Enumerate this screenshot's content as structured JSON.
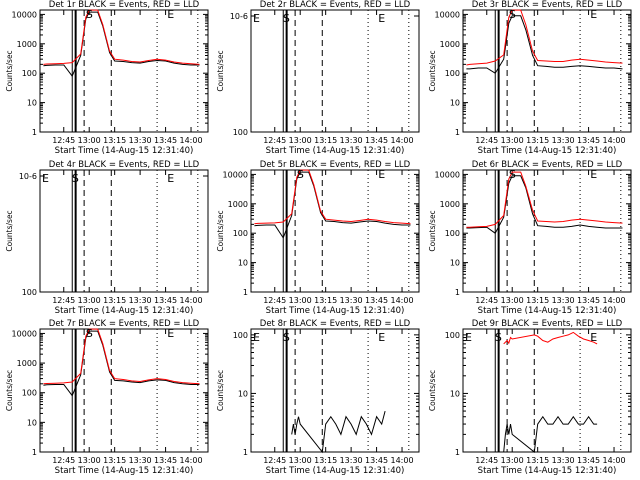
{
  "colors": {
    "events": "#000000",
    "lld": "#ff0000",
    "axis": "#000000",
    "background": "#ffffff"
  },
  "chart_data": [
    {
      "type": "line",
      "scale": "log",
      "title": "Det 1r BLACK = Events, RED = LLD",
      "ylabel": "Counts/sec",
      "xlabel": "Start Time (14-Aug-15 12:31:40)",
      "xticks": [
        "12:45",
        "13:00",
        "13:15",
        "13:30",
        "13:45",
        "14:00"
      ],
      "yticks": [
        "1",
        "10",
        "100",
        "1000",
        "10000"
      ],
      "ylim_log": [
        0,
        4.15
      ],
      "x": [
        "12:33",
        "12:35",
        "12:40",
        "12:45",
        "12:50",
        "12:55",
        "12:58",
        "13:00",
        "13:03",
        "13:05",
        "13:08",
        "13:12",
        "13:15",
        "13:20",
        "13:25",
        "13:30",
        "13:35",
        "13:40",
        "13:45",
        "13:50",
        "13:55",
        "14:00",
        "14:05"
      ],
      "series": [
        {
          "name": "Events",
          "color": "#000000",
          "values": [
            180,
            185,
            190,
            190,
            80,
            400,
            7000,
            12000,
            12000,
            12000,
            4000,
            500,
            260,
            250,
            230,
            220,
            250,
            270,
            260,
            220,
            200,
            190,
            190
          ]
        },
        {
          "name": "LLD",
          "color": "#ff0000",
          "values": [
            200,
            205,
            210,
            215,
            230,
            450,
            8000,
            14000,
            14000,
            14000,
            4500,
            560,
            300,
            280,
            250,
            240,
            270,
            300,
            280,
            240,
            220,
            210,
            200
          ]
        }
      ],
      "markers": [
        "S",
        "E"
      ]
    },
    {
      "type": "line",
      "scale": "log",
      "title": "Det 2r BLACK = Events, RED = LLD",
      "ylabel": "Counts/sec",
      "xlabel": "Start Time (14-Aug-15 12:31:40)",
      "xticks": [
        "12:45",
        "13:00",
        "13:15",
        "13:30",
        "13:45",
        "14:00"
      ],
      "yticks": [
        "10^0",
        "10^-6"
      ],
      "ylim_log": [
        0,
        1
      ],
      "x": [],
      "series": [],
      "markers": [
        "E",
        "S",
        "E"
      ]
    },
    {
      "type": "line",
      "scale": "log",
      "title": "Det 3r BLACK = Events, RED = LLD",
      "ylabel": "Counts/sec",
      "xlabel": "Start Time (14-Aug-15 12:31:40)",
      "xticks": [
        "12:45",
        "13:00",
        "13:15",
        "13:30",
        "13:45",
        "14:00"
      ],
      "yticks": [
        "1",
        "10",
        "100",
        "1000",
        "10000"
      ],
      "ylim_log": [
        0,
        4.15
      ],
      "x": [
        "12:33",
        "12:35",
        "12:40",
        "12:45",
        "12:50",
        "12:55",
        "12:58",
        "13:00",
        "13:03",
        "13:05",
        "13:08",
        "13:12",
        "13:15",
        "13:20",
        "13:25",
        "13:30",
        "13:35",
        "13:40",
        "13:45",
        "13:50",
        "13:55",
        "14:00",
        "14:05"
      ],
      "series": [
        {
          "name": "Events",
          "color": "#000000",
          "values": [
            140,
            140,
            150,
            150,
            100,
            300,
            5000,
            9000,
            9000,
            9000,
            3000,
            400,
            180,
            170,
            160,
            160,
            170,
            180,
            170,
            160,
            150,
            150,
            140
          ]
        },
        {
          "name": "LLD",
          "color": "#ff0000",
          "values": [
            190,
            200,
            210,
            220,
            260,
            420,
            8000,
            14000,
            14000,
            14000,
            4500,
            560,
            270,
            260,
            250,
            250,
            280,
            300,
            280,
            260,
            240,
            230,
            220
          ]
        }
      ],
      "markers": [
        "S",
        "E"
      ]
    },
    {
      "type": "line",
      "scale": "log",
      "title": "Det 4r BLACK = Events, RED = LLD",
      "ylabel": "Counts/sec",
      "xlabel": "Start Time (14-Aug-15 12:31:40)",
      "xticks": [
        "12:45",
        "13:00",
        "13:15",
        "13:30",
        "13:45",
        "14:00"
      ],
      "yticks": [
        "10^0",
        "10^-6"
      ],
      "ylim_log": [
        0,
        1
      ],
      "x": [],
      "series": [],
      "markers": [
        "E",
        "S",
        "E"
      ]
    },
    {
      "type": "line",
      "scale": "log",
      "title": "Det 5r BLACK = Events, RED = LLD",
      "ylabel": "Counts/sec",
      "xlabel": "Start Time (14-Aug-15 12:31:40)",
      "xticks": [
        "12:45",
        "13:00",
        "13:15",
        "13:30",
        "13:45",
        "14:00"
      ],
      "yticks": [
        "1",
        "10",
        "100",
        "1000",
        "10000"
      ],
      "ylim_log": [
        0,
        4.15
      ],
      "x": [
        "12:33",
        "12:35",
        "12:40",
        "12:45",
        "12:50",
        "12:55",
        "12:58",
        "13:00",
        "13:03",
        "13:05",
        "13:08",
        "13:12",
        "13:15",
        "13:20",
        "13:25",
        "13:30",
        "13:35",
        "13:40",
        "13:45",
        "13:50",
        "13:55",
        "14:00",
        "14:05"
      ],
      "series": [
        {
          "name": "Events",
          "color": "#000000",
          "values": [
            180,
            185,
            190,
            190,
            70,
            400,
            7000,
            12000,
            12000,
            12000,
            4000,
            500,
            260,
            250,
            230,
            220,
            240,
            260,
            250,
            220,
            200,
            190,
            190
          ]
        },
        {
          "name": "LLD",
          "color": "#ff0000",
          "values": [
            210,
            215,
            220,
            225,
            240,
            460,
            8000,
            14000,
            14000,
            14000,
            4500,
            560,
            300,
            280,
            260,
            250,
            270,
            300,
            280,
            250,
            230,
            220,
            210
          ]
        }
      ],
      "markers": [
        "S",
        "E"
      ]
    },
    {
      "type": "line",
      "scale": "log",
      "title": "Det 6r BLACK = Events, RED = LLD",
      "ylabel": "Counts/sec",
      "xlabel": "Start Time (14-Aug-15 12:31:40)",
      "xticks": [
        "12:45",
        "13:00",
        "13:15",
        "13:30",
        "13:45",
        "14:00"
      ],
      "yticks": [
        "1",
        "10",
        "100",
        "1000",
        "10000"
      ],
      "ylim_log": [
        0,
        4.15
      ],
      "x": [
        "12:33",
        "12:35",
        "12:40",
        "12:45",
        "12:50",
        "12:55",
        "12:58",
        "13:00",
        "13:03",
        "13:05",
        "13:08",
        "13:12",
        "13:15",
        "13:20",
        "13:25",
        "13:30",
        "13:35",
        "13:40",
        "13:45",
        "13:50",
        "13:55",
        "14:00",
        "14:05"
      ],
      "series": [
        {
          "name": "Events",
          "color": "#000000",
          "values": [
            150,
            150,
            155,
            160,
            100,
            350,
            5000,
            9000,
            9000,
            9000,
            3500,
            450,
            180,
            170,
            160,
            160,
            170,
            190,
            170,
            160,
            150,
            150,
            150
          ]
        },
        {
          "name": "LLD",
          "color": "#ff0000",
          "values": [
            160,
            160,
            165,
            170,
            200,
            400,
            7000,
            12000,
            12000,
            12000,
            4000,
            600,
            260,
            250,
            240,
            250,
            280,
            300,
            280,
            260,
            240,
            230,
            220
          ]
        }
      ],
      "markers": [
        "S",
        "E"
      ]
    },
    {
      "type": "line",
      "scale": "log",
      "title": "Det 7r BLACK = Events, RED = LLD",
      "ylabel": "Counts/sec",
      "xlabel": "Start Time (14-Aug-15 12:31:40)",
      "xticks": [
        "12:45",
        "13:00",
        "13:15",
        "13:30",
        "13:45",
        "14:00"
      ],
      "yticks": [
        "1",
        "10",
        "100",
        "1000",
        "10000"
      ],
      "ylim_log": [
        0,
        4.15
      ],
      "x": [
        "12:33",
        "12:35",
        "12:40",
        "12:45",
        "12:50",
        "12:55",
        "12:58",
        "13:00",
        "13:03",
        "13:05",
        "13:08",
        "13:12",
        "13:15",
        "13:20",
        "13:25",
        "13:30",
        "13:35",
        "13:40",
        "13:45",
        "13:50",
        "13:55",
        "14:00",
        "14:05"
      ],
      "series": [
        {
          "name": "Events",
          "color": "#000000",
          "values": [
            180,
            185,
            190,
            190,
            80,
            400,
            7000,
            12000,
            12000,
            12000,
            4000,
            500,
            260,
            250,
            230,
            220,
            250,
            270,
            260,
            220,
            200,
            190,
            190
          ]
        },
        {
          "name": "LLD",
          "color": "#ff0000",
          "values": [
            200,
            205,
            210,
            215,
            230,
            450,
            8000,
            14000,
            14000,
            14000,
            4500,
            560,
            300,
            280,
            250,
            240,
            270,
            300,
            280,
            240,
            220,
            210,
            200
          ]
        }
      ],
      "markers": [
        "S",
        "E"
      ]
    },
    {
      "type": "line",
      "scale": "log",
      "title": "Det 8r BLACK = Events, RED = LLD",
      "ylabel": "Counts/sec",
      "xlabel": "Start Time (14-Aug-15 12:31:40)",
      "xticks": [
        "12:45",
        "13:00",
        "13:15",
        "13:30",
        "13:45",
        "14:00"
      ],
      "yticks": [
        "1",
        "10",
        "100"
      ],
      "ylim_log": [
        0,
        2.1
      ],
      "x": [
        "12:55",
        "12:56",
        "12:57",
        "12:58",
        "12:59",
        "13:00",
        "13:13",
        "13:15",
        "13:18",
        "13:21",
        "13:24",
        "13:27",
        "13:30",
        "13:33",
        "13:36",
        "13:39",
        "13:42",
        "13:45",
        "13:48",
        "13:50"
      ],
      "series": [
        {
          "name": "Events",
          "color": "#000000",
          "values": [
            2,
            3,
            2,
            3,
            4,
            3,
            1,
            3,
            4,
            3,
            2,
            4,
            3,
            2,
            4,
            3,
            2,
            4,
            3,
            5
          ]
        }
      ],
      "markers": [
        "E",
        "S",
        "E"
      ]
    },
    {
      "type": "line",
      "scale": "log",
      "title": "Det 9r BLACK = Events, RED = LLD",
      "ylabel": "Counts/sec",
      "xlabel": "Start Time (14-Aug-15 12:31:40)",
      "xticks": [
        "12:45",
        "13:00",
        "13:15",
        "13:30",
        "13:45",
        "14:00"
      ],
      "yticks": [
        "1",
        "10",
        "100"
      ],
      "ylim_log": [
        0,
        2.1
      ],
      "x": [
        "12:55",
        "12:56",
        "12:57",
        "12:58",
        "12:59",
        "13:00",
        "13:13",
        "13:15",
        "13:18",
        "13:21",
        "13:24",
        "13:27",
        "13:30",
        "13:33",
        "13:36",
        "13:39",
        "13:42",
        "13:45",
        "13:48",
        "13:50"
      ],
      "series": [
        {
          "name": "Events",
          "color": "#000000",
          "values": [
            1,
            2,
            3,
            2,
            3,
            2,
            1,
            3,
            4,
            3,
            3,
            4,
            3,
            3,
            4,
            3,
            3,
            4,
            3,
            3
          ]
        },
        {
          "name": "LLD",
          "color": "#ff0000",
          "values": [
            70,
            75,
            80,
            72,
            90,
            85,
            100,
            95,
            80,
            75,
            85,
            90,
            95,
            100,
            110,
            95,
            85,
            80,
            75,
            70
          ]
        }
      ],
      "markers": [
        "E",
        "S",
        "E"
      ]
    }
  ]
}
